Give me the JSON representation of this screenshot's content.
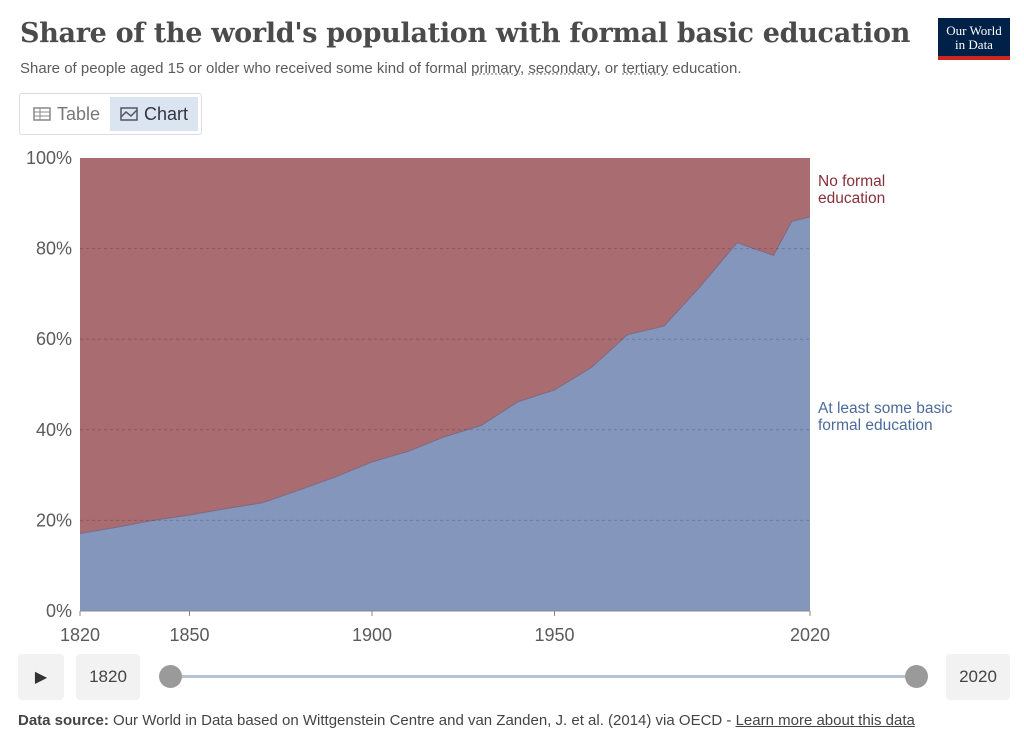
{
  "header": {
    "title": "Share of the world's population with formal basic education",
    "subtitle_pre": "Share of people aged 15 or older who received some kind of formal ",
    "subtitle_primary": "primary",
    "subtitle_sep1": ", ",
    "subtitle_secondary": "secondary",
    "subtitle_sep2": ", or ",
    "subtitle_tertiary": "tertiary",
    "subtitle_post": " education.",
    "logo_line1": "Our World",
    "logo_line2": "in Data"
  },
  "tabs": [
    {
      "label": "Table",
      "icon": "table-icon"
    },
    {
      "label": "Chart",
      "icon": "chart-icon",
      "active": true
    }
  ],
  "colors": {
    "educated": "#8496bb",
    "no_education": "#a96c71",
    "educated_label": "#4c6a9c",
    "no_education_label": "#883039"
  },
  "chart_data": {
    "type": "area",
    "stacked": true,
    "x": [
      1820,
      1830,
      1840,
      1850,
      1860,
      1870,
      1880,
      1890,
      1900,
      1910,
      1920,
      1930,
      1940,
      1950,
      1960,
      1970,
      1980,
      1990,
      2000,
      2010,
      2015,
      2020
    ],
    "series": [
      {
        "name": "At least some basic formal education",
        "values": [
          17.1,
          18.5,
          20,
          21.2,
          22.6,
          23.9,
          26.7,
          29.6,
          32.9,
          35.3,
          38.5,
          41,
          46.2,
          48.8,
          53.7,
          61,
          62.9,
          71.7,
          81.3,
          78.5,
          86,
          87
        ]
      },
      {
        "name": "No formal education",
        "values": [
          82.9,
          81.5,
          80,
          78.8,
          77.4,
          76.1,
          73.3,
          70.4,
          67.1,
          64.7,
          61.5,
          59,
          53.8,
          51.2,
          46.3,
          39,
          37.1,
          28.3,
          18.7,
          21.5,
          14,
          13
        ]
      }
    ],
    "labels": {
      "educated": [
        "At least some basic",
        "formal education"
      ],
      "no_education": [
        "No formal",
        "education"
      ]
    },
    "y_ticks": [
      "0%",
      "20%",
      "40%",
      "60%",
      "80%",
      "100%"
    ],
    "y_tick_values": [
      0,
      20,
      40,
      60,
      80,
      100
    ],
    "x_ticks": [
      "1820",
      "1850",
      "1900",
      "1950",
      "2020"
    ],
    "x_tick_values": [
      1820,
      1850,
      1900,
      1950,
      2020
    ],
    "xlim": [
      1820,
      2020
    ],
    "ylim": [
      0,
      100
    ],
    "grid": true
  },
  "timeline": {
    "start": "1820",
    "end": "2020"
  },
  "footer": {
    "source_label": "Data source:",
    "source_text": " Our World in Data based on Wittgenstein Centre and van Zanden, J. et al. (2014) via OECD - ",
    "link": "Learn more about this data"
  }
}
